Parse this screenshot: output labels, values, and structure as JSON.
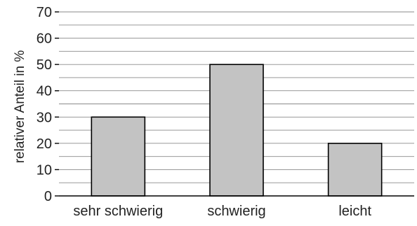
{
  "chart_data": {
    "type": "bar",
    "categories": [
      "sehr schwierig",
      "schwierig",
      "leicht"
    ],
    "values": [
      30,
      50,
      20
    ],
    "title": "",
    "xlabel": "",
    "ylabel": "relativer Anteil in %",
    "ylim": [
      0,
      70
    ],
    "yticks": [
      0,
      10,
      20,
      30,
      40,
      50,
      60,
      70
    ],
    "ytick_labels": [
      "0",
      "10",
      "20",
      "30",
      "40",
      "50",
      "60",
      "70"
    ],
    "minor_grid_step": 5,
    "grid": true,
    "legend": "none",
    "bar_color": "#c3c3c3",
    "bar_edge_color": "#000000"
  }
}
